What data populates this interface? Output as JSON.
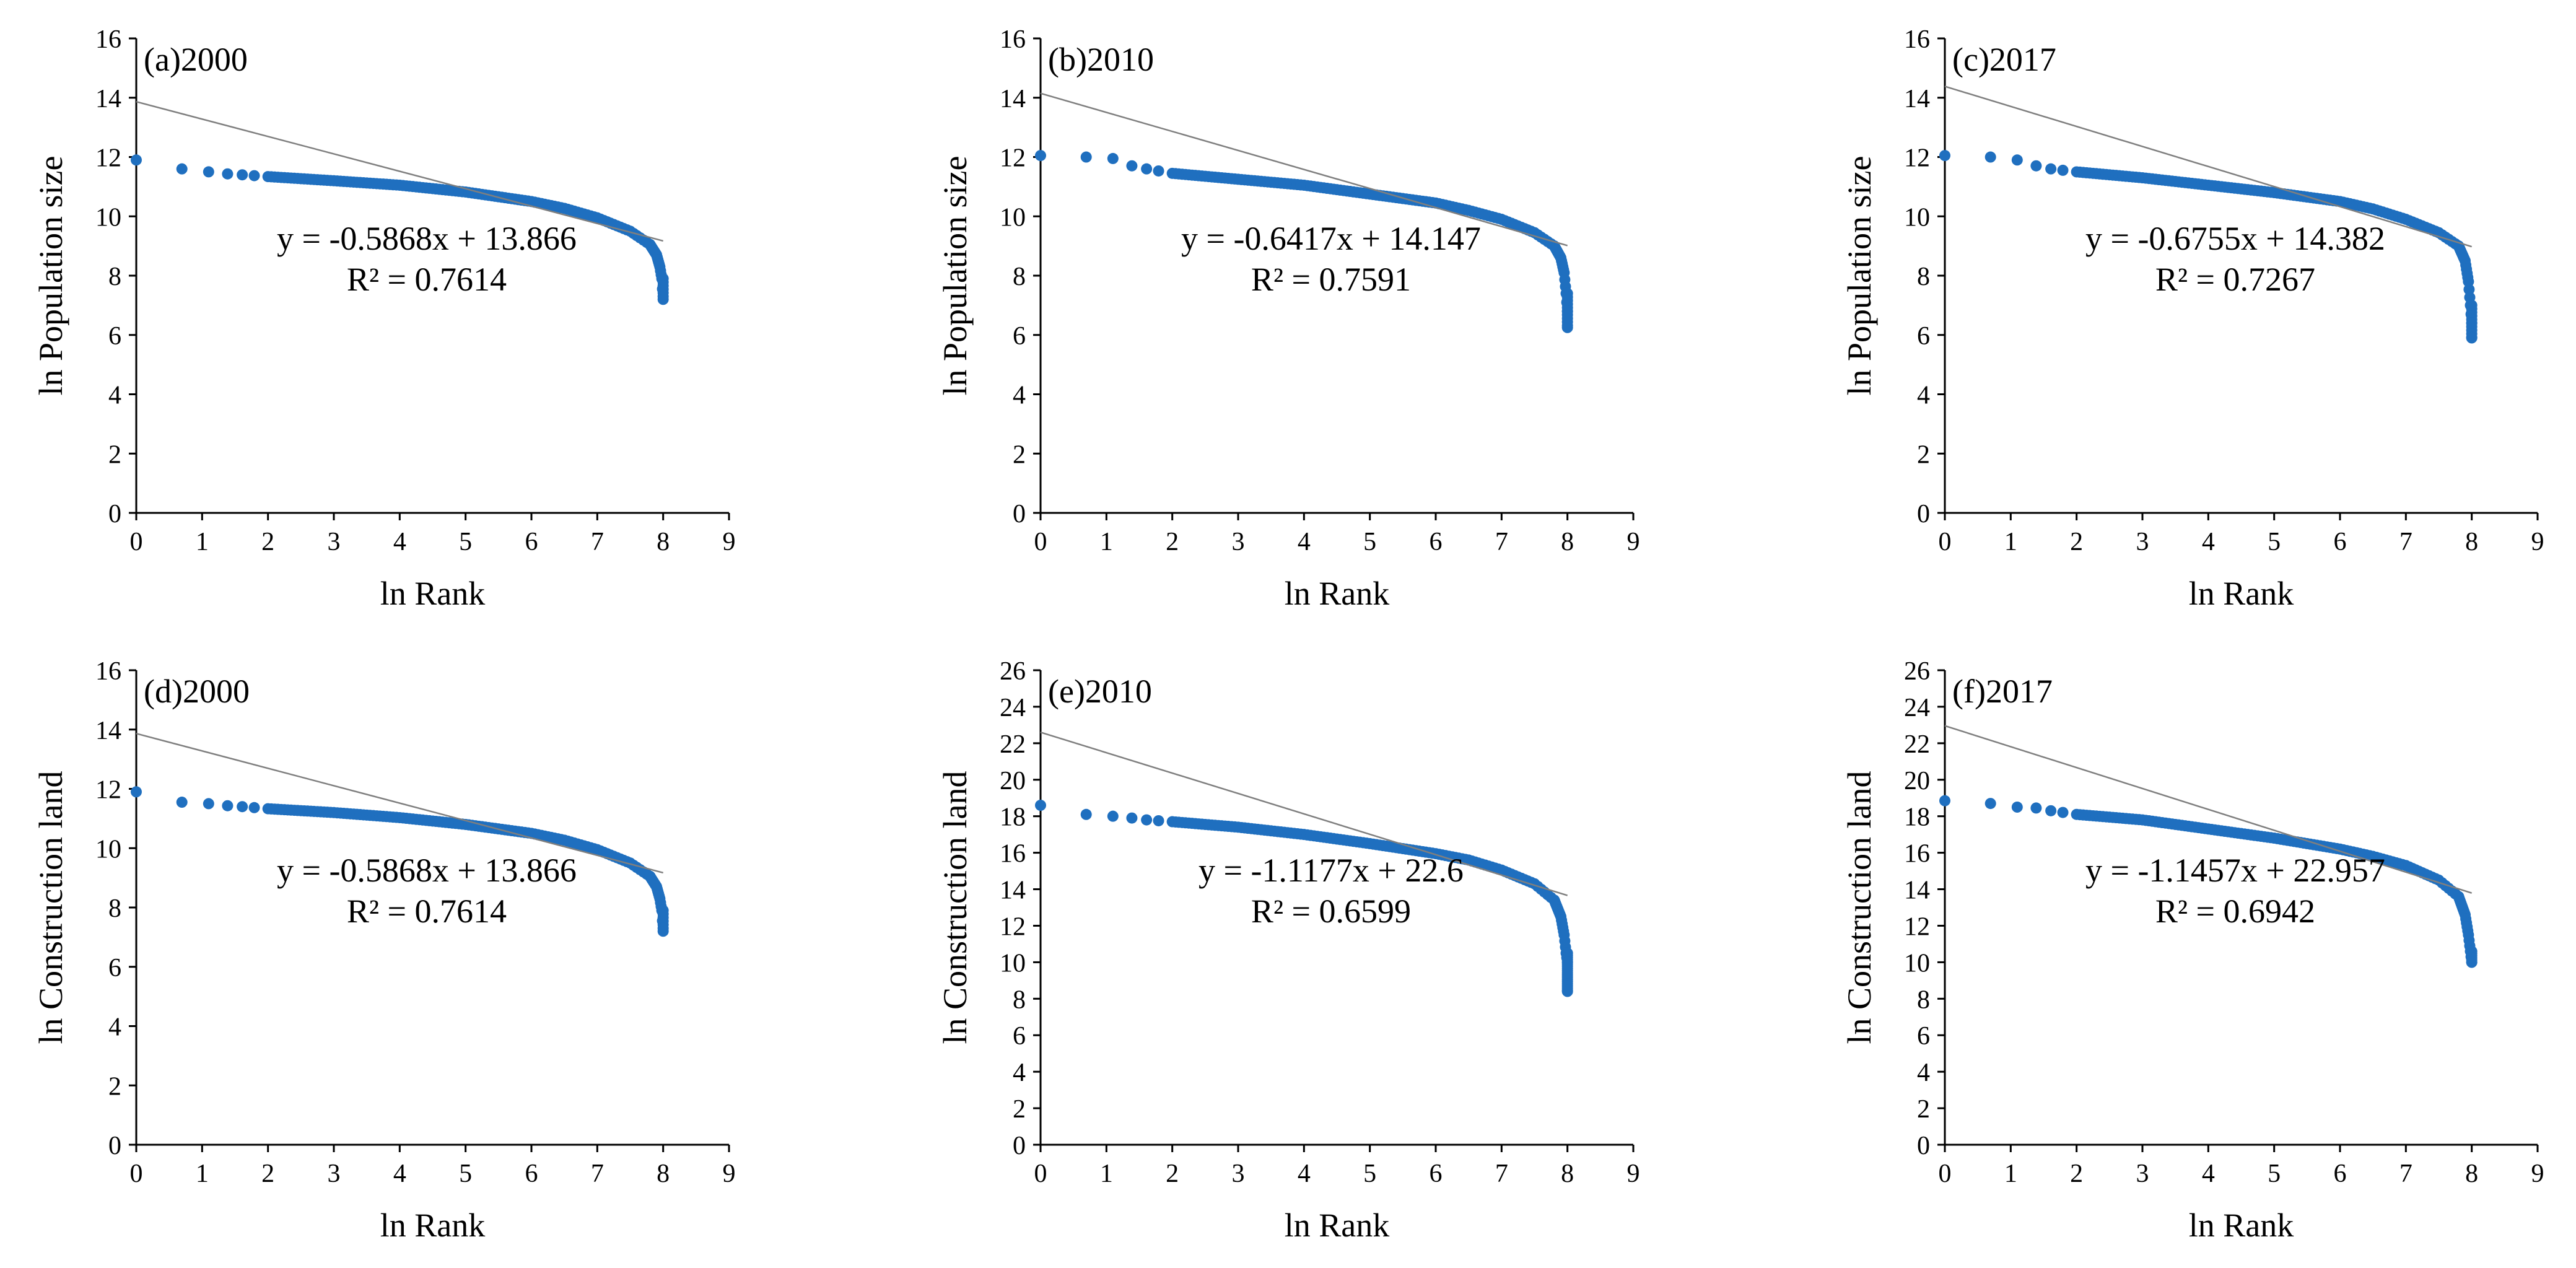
{
  "figure": {
    "marker_color": "#1F6FBF",
    "trend_color": "#7f7f7f",
    "axis_color": "#000000"
  },
  "chart_data": [
    {
      "type": "scatter",
      "title": "(a)2000",
      "xlabel": "ln Rank",
      "ylabel": "ln Population size",
      "xlim": [
        0,
        9
      ],
      "ylim": [
        0,
        16
      ],
      "xticks": [
        "0",
        "1",
        "2",
        "3",
        "4",
        "5",
        "6",
        "7",
        "8",
        "9"
      ],
      "yticks": [
        "0",
        "2",
        "4",
        "6",
        "8",
        "10",
        "12",
        "14",
        "16"
      ],
      "trendline": {
        "slope": -0.5868,
        "intercept": 13.866,
        "x_range": [
          0,
          8
        ]
      },
      "equation": "y = -0.5868x + 13.866",
      "r2": "R² = 0.7614",
      "curve": [
        [
          0,
          11.9
        ],
        [
          0.69,
          11.6
        ],
        [
          1.1,
          11.5
        ],
        [
          1.39,
          11.43
        ],
        [
          1.61,
          11.4
        ],
        [
          2,
          11.34
        ],
        [
          3,
          11.2
        ],
        [
          4,
          11.05
        ],
        [
          5,
          10.82
        ],
        [
          6,
          10.5
        ],
        [
          6.5,
          10.27
        ],
        [
          7,
          9.95
        ],
        [
          7.5,
          9.5
        ],
        [
          7.8,
          9.05
        ],
        [
          7.9,
          8.7
        ],
        [
          7.95,
          8.3
        ],
        [
          7.98,
          7.9
        ],
        [
          8.0,
          7.2
        ]
      ]
    },
    {
      "type": "scatter",
      "title": "(b)2010",
      "xlabel": "ln Rank",
      "ylabel": "ln Population size",
      "xlim": [
        0,
        9
      ],
      "ylim": [
        0,
        16
      ],
      "xticks": [
        "0",
        "1",
        "2",
        "3",
        "4",
        "5",
        "6",
        "7",
        "8",
        "9"
      ],
      "yticks": [
        "0",
        "2",
        "4",
        "6",
        "8",
        "10",
        "12",
        "14",
        "16"
      ],
      "trendline": {
        "slope": -0.6417,
        "intercept": 14.147,
        "x_range": [
          0,
          8
        ]
      },
      "equation": "y = -0.6417x + 14.147",
      "r2": "R² = 0.7591",
      "curve": [
        [
          0,
          12.05
        ],
        [
          0.69,
          12.0
        ],
        [
          1.1,
          11.95
        ],
        [
          1.39,
          11.7
        ],
        [
          1.61,
          11.6
        ],
        [
          2,
          11.45
        ],
        [
          3,
          11.25
        ],
        [
          4,
          11.05
        ],
        [
          5,
          10.75
        ],
        [
          6,
          10.45
        ],
        [
          6.5,
          10.2
        ],
        [
          7,
          9.9
        ],
        [
          7.5,
          9.45
        ],
        [
          7.8,
          9.0
        ],
        [
          7.9,
          8.6
        ],
        [
          7.95,
          8.1
        ],
        [
          7.98,
          7.4
        ],
        [
          8.0,
          6.8
        ],
        [
          8.0,
          6.25
        ]
      ]
    },
    {
      "type": "scatter",
      "title": "(c)2017",
      "xlabel": "ln Rank",
      "ylabel": "ln Population size",
      "xlim": [
        0,
        9
      ],
      "ylim": [
        0,
        16
      ],
      "xticks": [
        "0",
        "1",
        "2",
        "3",
        "4",
        "5",
        "6",
        "7",
        "8",
        "9"
      ],
      "yticks": [
        "0",
        "2",
        "4",
        "6",
        "8",
        "10",
        "12",
        "14",
        "16"
      ],
      "trendline": {
        "slope": -0.6755,
        "intercept": 14.382,
        "x_range": [
          0,
          8
        ]
      },
      "equation": "y = -0.6755x + 14.382",
      "r2": "R² = 0.7267",
      "curve": [
        [
          0,
          12.05
        ],
        [
          0.69,
          12.0
        ],
        [
          1.1,
          11.9
        ],
        [
          1.39,
          11.7
        ],
        [
          1.61,
          11.6
        ],
        [
          2,
          11.5
        ],
        [
          3,
          11.3
        ],
        [
          4,
          11.05
        ],
        [
          5,
          10.8
        ],
        [
          6,
          10.5
        ],
        [
          6.5,
          10.25
        ],
        [
          7,
          9.9
        ],
        [
          7.5,
          9.45
        ],
        [
          7.8,
          9.0
        ],
        [
          7.9,
          8.5
        ],
        [
          7.95,
          7.8
        ],
        [
          7.98,
          7.0
        ],
        [
          8.0,
          6.4
        ],
        [
          8.0,
          5.9
        ]
      ]
    },
    {
      "type": "scatter",
      "title": "(d)2000",
      "xlabel": "ln Rank",
      "ylabel": "ln Construction land",
      "xlim": [
        0,
        9
      ],
      "ylim": [
        0,
        16
      ],
      "xticks": [
        "0",
        "1",
        "2",
        "3",
        "4",
        "5",
        "6",
        "7",
        "8",
        "9"
      ],
      "yticks": [
        "0",
        "2",
        "4",
        "6",
        "8",
        "10",
        "12",
        "14",
        "16"
      ],
      "trendline": {
        "slope": -0.5868,
        "intercept": 13.866,
        "x_range": [
          0,
          8
        ]
      },
      "equation": "y = -0.5868x + 13.866",
      "r2": "R² = 0.7614",
      "curve": [
        [
          0,
          11.9
        ],
        [
          0.69,
          11.55
        ],
        [
          1.1,
          11.5
        ],
        [
          1.39,
          11.43
        ],
        [
          1.61,
          11.4
        ],
        [
          2,
          11.33
        ],
        [
          3,
          11.2
        ],
        [
          4,
          11.03
        ],
        [
          5,
          10.8
        ],
        [
          6,
          10.5
        ],
        [
          6.5,
          10.27
        ],
        [
          7,
          9.95
        ],
        [
          7.5,
          9.5
        ],
        [
          7.8,
          9.05
        ],
        [
          7.9,
          8.7
        ],
        [
          7.95,
          8.3
        ],
        [
          7.98,
          7.9
        ],
        [
          8.0,
          7.2
        ]
      ]
    },
    {
      "type": "scatter",
      "title": "(e)2010",
      "xlabel": "ln Rank",
      "ylabel": "ln Construction land",
      "xlim": [
        0,
        9
      ],
      "ylim": [
        0,
        26
      ],
      "xticks": [
        "0",
        "1",
        "2",
        "3",
        "4",
        "5",
        "6",
        "7",
        "8",
        "9"
      ],
      "yticks": [
        "0",
        "2",
        "4",
        "6",
        "8",
        "10",
        "12",
        "14",
        "16",
        "18",
        "20",
        "22",
        "24",
        "26"
      ],
      "trendline": {
        "slope": -1.1177,
        "intercept": 22.6,
        "x_range": [
          0,
          8
        ]
      },
      "equation": "y = -1.1177x + 22.6",
      "r2": "R² = 0.6599",
      "curve": [
        [
          0,
          18.6
        ],
        [
          0.69,
          18.1
        ],
        [
          1.1,
          18.0
        ],
        [
          1.39,
          17.9
        ],
        [
          1.61,
          17.8
        ],
        [
          2,
          17.7
        ],
        [
          3,
          17.4
        ],
        [
          4,
          17.0
        ],
        [
          5,
          16.5
        ],
        [
          6,
          15.95
        ],
        [
          6.5,
          15.6
        ],
        [
          7,
          15.05
        ],
        [
          7.5,
          14.3
        ],
        [
          7.8,
          13.4
        ],
        [
          7.9,
          12.5
        ],
        [
          7.95,
          11.5
        ],
        [
          7.98,
          10.5
        ],
        [
          8.0,
          10.0
        ],
        [
          8.0,
          8.4
        ]
      ]
    },
    {
      "type": "scatter",
      "title": "(f)2017",
      "xlabel": "ln Rank",
      "ylabel": "ln Construction land",
      "xlim": [
        0,
        9
      ],
      "ylim": [
        0,
        26
      ],
      "xticks": [
        "0",
        "1",
        "2",
        "3",
        "4",
        "5",
        "6",
        "7",
        "8",
        "9"
      ],
      "yticks": [
        "0",
        "2",
        "4",
        "6",
        "8",
        "10",
        "12",
        "14",
        "16",
        "18",
        "20",
        "22",
        "24",
        "26"
      ],
      "trendline": {
        "slope": -1.1457,
        "intercept": 22.957,
        "x_range": [
          0,
          8
        ]
      },
      "equation": "y = -1.1457x + 22.957",
      "r2": "R² = 0.6942",
      "curve": [
        [
          0,
          18.85
        ],
        [
          0.69,
          18.7
        ],
        [
          1.1,
          18.5
        ],
        [
          1.39,
          18.45
        ],
        [
          1.61,
          18.3
        ],
        [
          2,
          18.1
        ],
        [
          3,
          17.8
        ],
        [
          4,
          17.3
        ],
        [
          5,
          16.8
        ],
        [
          6,
          16.2
        ],
        [
          6.5,
          15.8
        ],
        [
          7,
          15.3
        ],
        [
          7.5,
          14.5
        ],
        [
          7.8,
          13.6
        ],
        [
          7.9,
          12.6
        ],
        [
          7.95,
          11.5
        ],
        [
          7.98,
          10.6
        ],
        [
          8.0,
          10.0
        ]
      ]
    }
  ]
}
